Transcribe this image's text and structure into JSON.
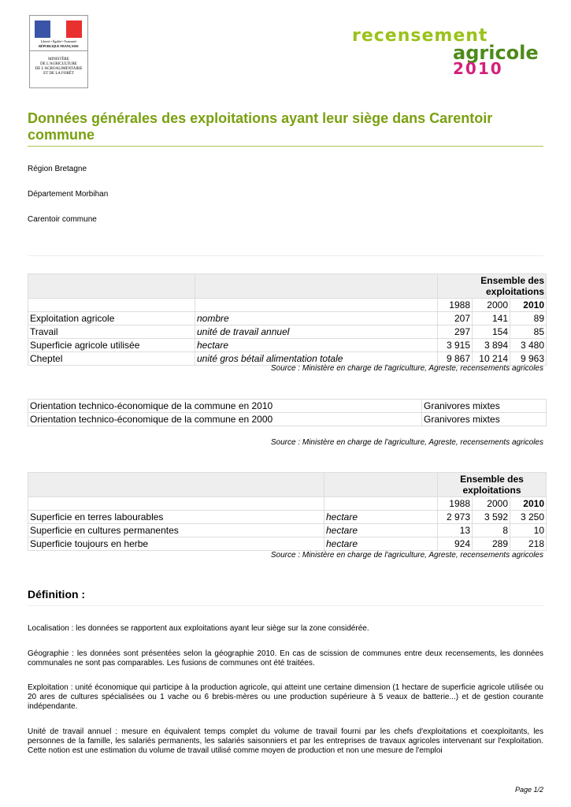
{
  "header": {
    "logo_left": {
      "motto": "Liberté • Égalité • Fraternité",
      "republic": "RÉPUBLIQUE FRANÇAISE",
      "ministry": [
        "MINISTÈRE",
        "DE L'AGRICULTURE",
        "DE L'AGROALIMENTAIRE",
        "ET DE LA FORÊT"
      ]
    },
    "logo_right": {
      "line1": "recensement",
      "line2": "agricole",
      "line3": "2010"
    }
  },
  "title": "Données générales des exploitations ayant leur siège dans Carentoir commune",
  "location": {
    "region": "Région Bretagne",
    "departement": "Département Morbihan",
    "commune": "Carentoir commune"
  },
  "table1": {
    "group_header": "Ensemble des exploitations",
    "years": [
      "1988",
      "2000",
      "2010"
    ],
    "rows": [
      {
        "label": "Exploitation agricole",
        "unit": "nombre",
        "values": [
          "207",
          "141",
          "89"
        ]
      },
      {
        "label": "Travail",
        "unit": "unité de travail annuel",
        "values": [
          "297",
          "154",
          "85"
        ]
      },
      {
        "label": "Superficie agricole utilisée",
        "unit": "hectare",
        "values": [
          "3 915",
          "3 894",
          "3 480"
        ]
      },
      {
        "label": "Cheptel",
        "unit": "unité gros bétail alimentation totale",
        "values": [
          "9 867",
          "10 214",
          "9 963"
        ]
      }
    ]
  },
  "source": "Source : Ministère en charge de l'agriculture, Agreste, recensements agricoles",
  "table2": {
    "rows": [
      {
        "label": "Orientation technico-économique de la commune en 2010",
        "value": "Granivores mixtes"
      },
      {
        "label": "Orientation technico-économique de la commune en 2000",
        "value": "Granivores mixtes"
      }
    ]
  },
  "table3": {
    "group_header": "Ensemble des exploitations",
    "years": [
      "1988",
      "2000",
      "2010"
    ],
    "rows": [
      {
        "label": "Superficie en terres labourables",
        "unit": "hectare",
        "values": [
          "2 973",
          "3 592",
          "3 250"
        ]
      },
      {
        "label": "Superficie en cultures permanentes",
        "unit": "hectare",
        "values": [
          "13",
          "8",
          "10"
        ]
      },
      {
        "label": "Superficie toujours en herbe",
        "unit": "hectare",
        "values": [
          "924",
          "289",
          "218"
        ]
      }
    ]
  },
  "definition": {
    "heading": "Définition :",
    "paragraphs": [
      "Localisation : les données se rapportent aux exploitations ayant leur siège sur la zone considérée.",
      "Géographie : les données sont présentées selon la géographie 2010. En cas de scission de communes entre deux recensements, les données communales ne sont pas comparables. Les fusions de communes ont été traitées.",
      "Exploitation : unité économique qui participe à la production agricole, qui atteint une certaine dimension (1 hectare de superficie agricole utilisée ou 20 ares de cultures spécialisées ou 1 vache ou 6 brebis-mères ou une production supérieure à 5 veaux de batterie...) et de gestion courante indépendante.",
      "Unité de travail annuel : mesure en équivalent temps complet du volume de travail fourni par les chefs d'exploitations et coexploitants, les personnes de la famille, les salariés permanents, les salariés saisonniers et par les entreprises de travaux agricoles intervenant sur l'exploitation. Cette notion est une estimation du volume de travail utilisé comme moyen de production et non une mesure de l'emploi"
    ]
  },
  "footer": {
    "page": "Page 1/2"
  },
  "colors": {
    "title": "#7aa011",
    "rule": "#a8c64a",
    "logo_green_light": "#9ac21a",
    "logo_green_dark": "#4d8a1a",
    "logo_pink": "#d4207a"
  }
}
